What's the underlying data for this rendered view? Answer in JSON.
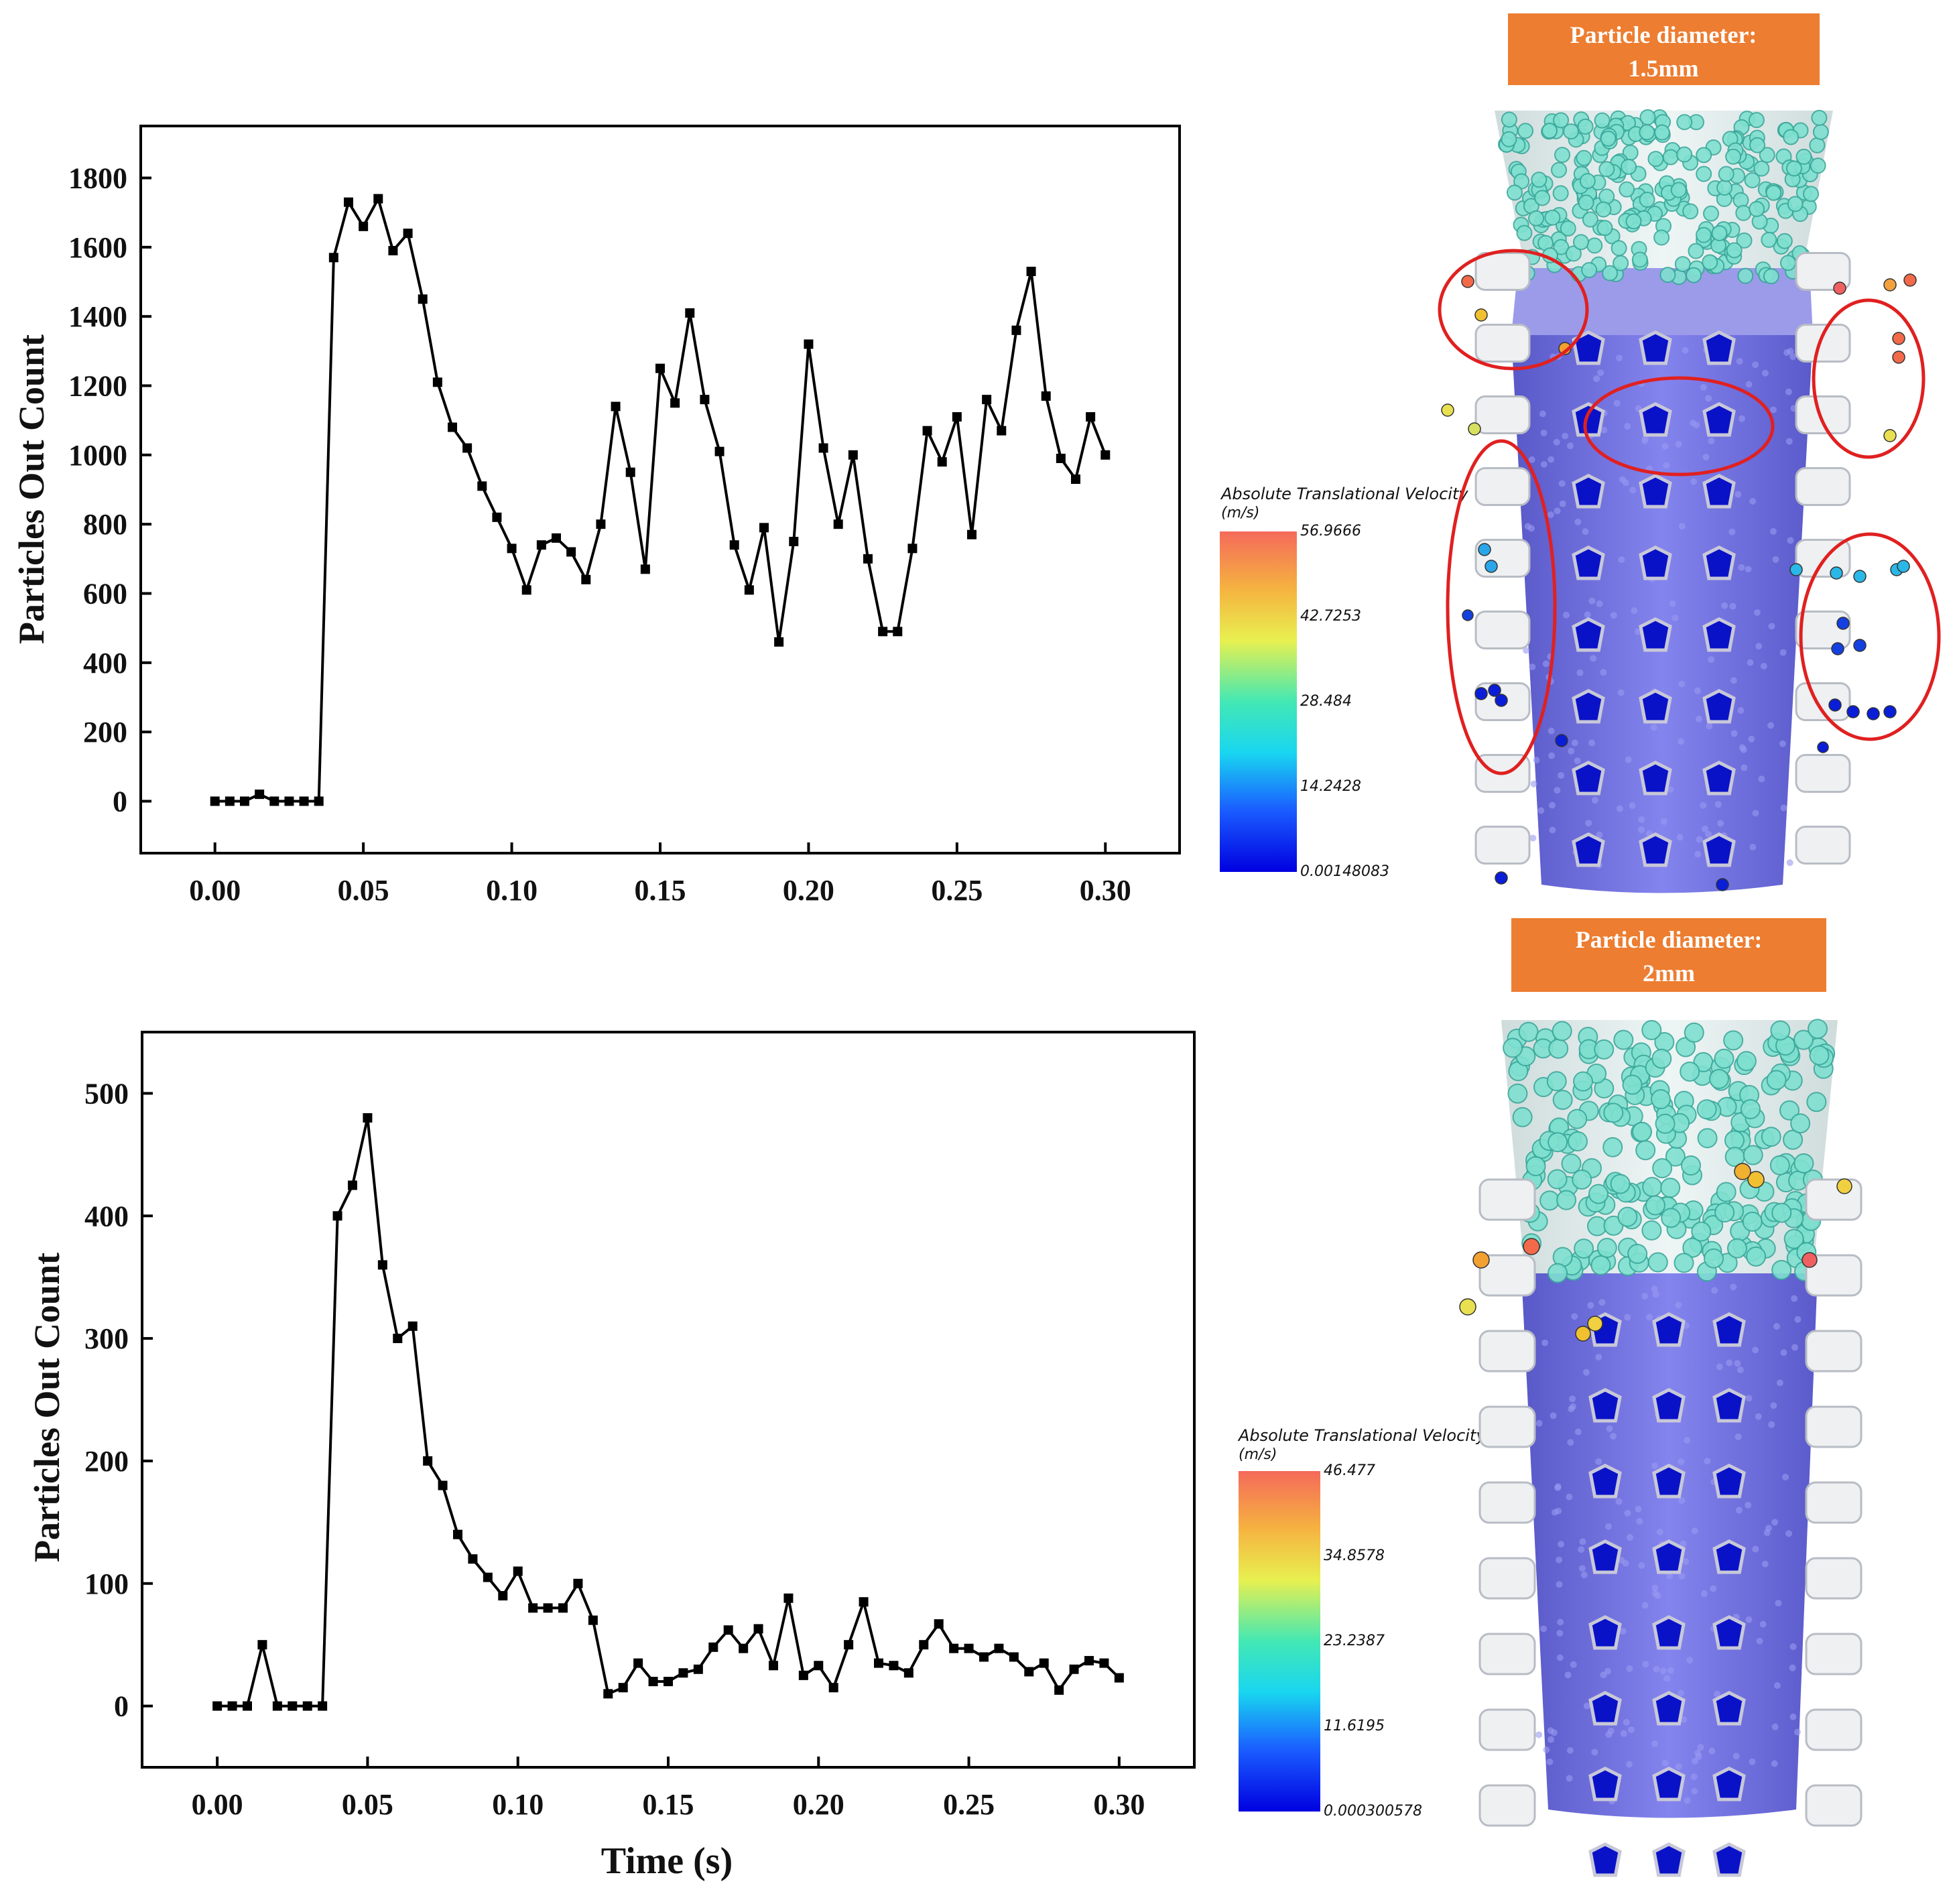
{
  "chart_data": [
    {
      "type": "line",
      "title": "",
      "xlabel": "",
      "ylabel": "Particles Out Count",
      "xlim": [
        -0.025,
        0.325
      ],
      "ylim": [
        -150,
        1950
      ],
      "xticks": [
        "0.00",
        "0.05",
        "0.10",
        "0.15",
        "0.20",
        "0.25",
        "0.30"
      ],
      "yticks": [
        "0",
        "200",
        "400",
        "600",
        "800",
        "1000",
        "1200",
        "1400",
        "1600",
        "1800"
      ],
      "series": [
        {
          "name": "Particle diameter: 1.5mm",
          "x": [
            0,
            0.005,
            0.01,
            0.015,
            0.02,
            0.025,
            0.03,
            0.035,
            0.04,
            0.045,
            0.05,
            0.055,
            0.06,
            0.065,
            0.07,
            0.075,
            0.08,
            0.085,
            0.09,
            0.095,
            0.1,
            0.105,
            0.11,
            0.115,
            0.12,
            0.125,
            0.13,
            0.135,
            0.14,
            0.145,
            0.15,
            0.155,
            0.16,
            0.165,
            0.17,
            0.175,
            0.18,
            0.185,
            0.19,
            0.195,
            0.2,
            0.205,
            0.21,
            0.215,
            0.22,
            0.225,
            0.23,
            0.235,
            0.24,
            0.245,
            0.25,
            0.255,
            0.26,
            0.265,
            0.27,
            0.275,
            0.28,
            0.285,
            0.29,
            0.295,
            0.3
          ],
          "y": [
            0,
            0,
            0,
            20,
            0,
            0,
            0,
            0,
            1570,
            1730,
            1660,
            1740,
            1590,
            1640,
            1450,
            1210,
            1080,
            1020,
            910,
            820,
            730,
            610,
            740,
            760,
            720,
            640,
            800,
            1140,
            950,
            670,
            1250,
            1150,
            1410,
            1160,
            1010,
            740,
            610,
            790,
            460,
            750,
            1320,
            1020,
            800,
            1000,
            700,
            490,
            490,
            730,
            1070,
            980,
            1110,
            770,
            1160,
            1070,
            1360,
            1530,
            1170,
            990,
            930,
            1110,
            1000
          ]
        }
      ]
    },
    {
      "type": "line",
      "title": "",
      "xlabel": "Time (s)",
      "ylabel": "Particles Out Count",
      "xlim": [
        -0.025,
        0.325
      ],
      "ylim": [
        -50,
        550
      ],
      "xticks": [
        "0.00",
        "0.05",
        "0.10",
        "0.15",
        "0.20",
        "0.25",
        "0.30"
      ],
      "yticks": [
        "0",
        "100",
        "200",
        "300",
        "400",
        "500"
      ],
      "series": [
        {
          "name": "Particle diameter: 2mm",
          "x": [
            0,
            0.005,
            0.01,
            0.015,
            0.02,
            0.025,
            0.03,
            0.035,
            0.04,
            0.045,
            0.05,
            0.055,
            0.06,
            0.065,
            0.07,
            0.075,
            0.08,
            0.085,
            0.09,
            0.095,
            0.1,
            0.105,
            0.11,
            0.115,
            0.12,
            0.125,
            0.13,
            0.135,
            0.14,
            0.145,
            0.15,
            0.155,
            0.16,
            0.165,
            0.17,
            0.175,
            0.18,
            0.185,
            0.19,
            0.195,
            0.2,
            0.205,
            0.21,
            0.215,
            0.22,
            0.225,
            0.23,
            0.235,
            0.24,
            0.245,
            0.25,
            0.255,
            0.26,
            0.265,
            0.27,
            0.275,
            0.28,
            0.285,
            0.29,
            0.295,
            0.3
          ],
          "y": [
            0,
            0,
            0,
            50,
            0,
            0,
            0,
            0,
            400,
            425,
            480,
            360,
            300,
            310,
            200,
            180,
            140,
            120,
            105,
            90,
            110,
            80,
            80,
            80,
            100,
            70,
            10,
            15,
            35,
            20,
            20,
            27,
            30,
            48,
            62,
            47,
            63,
            33,
            88,
            25,
            33,
            15,
            50,
            85,
            35,
            33,
            27,
            50,
            67,
            47,
            47,
            40,
            47,
            40,
            28,
            35,
            13,
            30,
            37,
            35,
            23
          ]
        }
      ]
    }
  ],
  "panels": [
    {
      "label_line1": "Particle diameter:",
      "label_line2": "1.5mm",
      "colorbar_title_line1": "Absolute Translational Velocity",
      "colorbar_title_line2": "(m/s)",
      "colorbar_ticks": [
        "56.9666",
        "42.7253",
        "28.484",
        "14.2428",
        "0.00148083"
      ]
    },
    {
      "label_line1": "Particle diameter:",
      "label_line2": "2mm",
      "colorbar_title_line1": "Absolute Translational Velocity",
      "colorbar_title_line2": "(m/s)",
      "colorbar_ticks": [
        "46.477",
        "34.8578",
        "23.2387",
        "11.6195",
        "0.000300578"
      ]
    }
  ],
  "colors": {
    "badge": "#ed7d31",
    "line": "#000000",
    "highlight": "#e02020",
    "sleeve": "#6e6ee0",
    "hole": "#0a12c8",
    "packed_particles": "#6fd7c8"
  }
}
